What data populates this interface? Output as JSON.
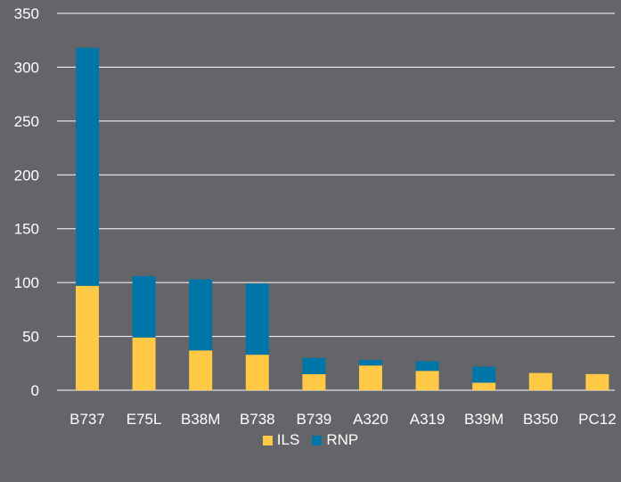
{
  "chart_data": {
    "type": "bar",
    "stacked": true,
    "categories": [
      "B737",
      "E75L",
      "B38M",
      "B738",
      "B739",
      "A320",
      "A319",
      "B39M",
      "B350",
      "PC12"
    ],
    "series": [
      {
        "name": "ILS",
        "color": "#FFC845",
        "values": [
          97,
          49,
          37,
          33,
          15,
          23,
          18,
          7,
          16,
          15
        ]
      },
      {
        "name": "RNP",
        "color": "#0076A8",
        "values": [
          221,
          57,
          66,
          66,
          15,
          5,
          9,
          15,
          0,
          0
        ]
      }
    ],
    "yticks": [
      "0",
      "50",
      "100",
      "150",
      "200",
      "250",
      "300",
      "350"
    ],
    "ylim": [
      0,
      350
    ],
    "title": "",
    "xlabel": "",
    "ylabel": "",
    "grid": true,
    "legend_position": "bottom"
  }
}
